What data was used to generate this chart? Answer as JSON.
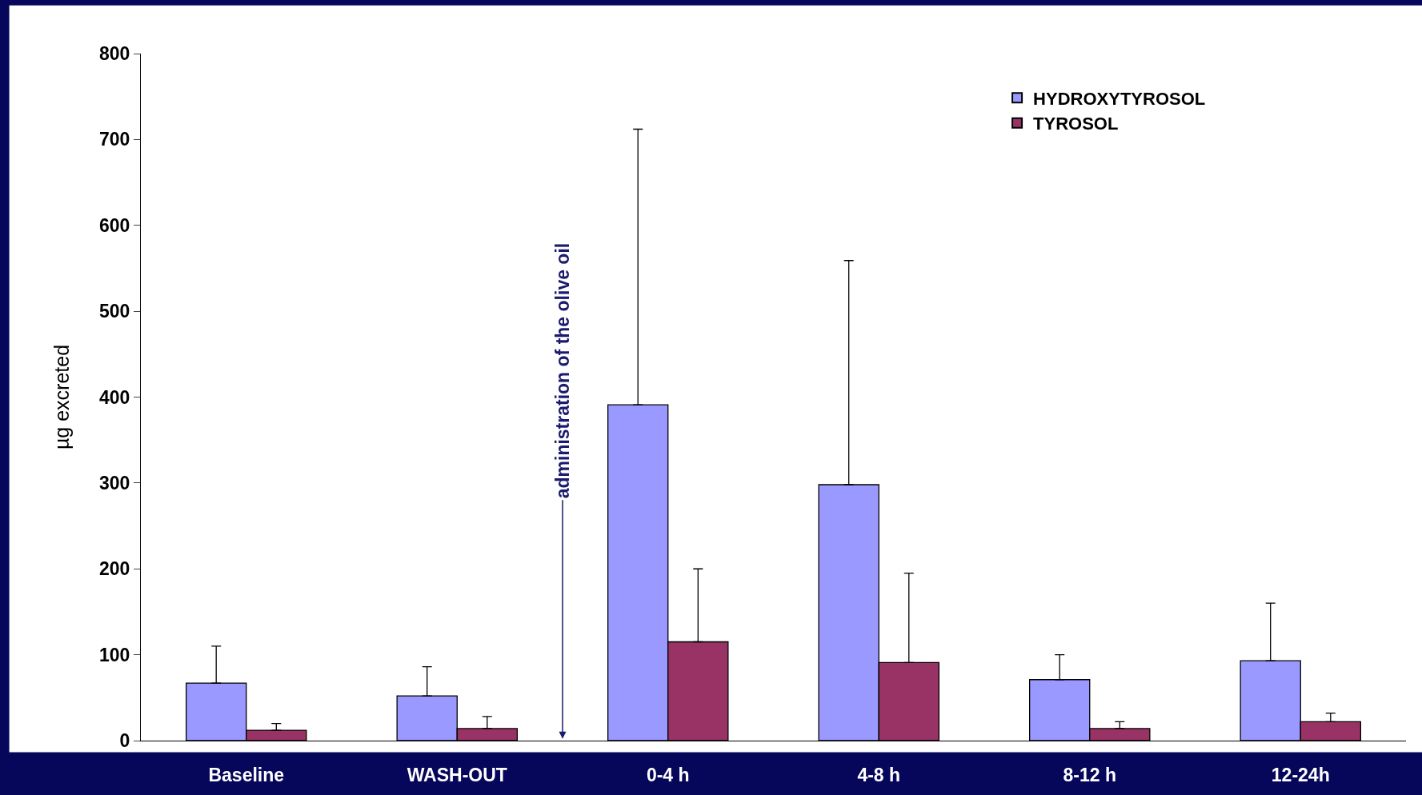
{
  "chart_data": {
    "type": "bar",
    "ylabel": "µg excreted",
    "categories": [
      "Baseline",
      "WASH-OUT",
      "0-4 h",
      "4-8 h",
      "8-12 h",
      "12-24h"
    ],
    "series": [
      {
        "name": "HYDROXYTYROSOL",
        "color": "#9999ff",
        "values": [
          67,
          52,
          391,
          298,
          71,
          93
        ],
        "errors": [
          [
            67,
            110
          ],
          [
            52,
            86
          ],
          [
            391,
            712
          ],
          [
            298,
            559
          ],
          [
            71,
            100
          ],
          [
            93,
            160
          ]
        ]
      },
      {
        "name": "TYROSOL",
        "color": "#993366",
        "values": [
          12,
          14,
          115,
          91,
          14,
          22
        ],
        "errors": [
          [
            12,
            20
          ],
          [
            14,
            28
          ],
          [
            115,
            200
          ],
          [
            91,
            195
          ],
          [
            14,
            22
          ],
          [
            22,
            32
          ]
        ]
      }
    ],
    "ylim": [
      0,
      800
    ],
    "yticks": [
      0,
      100,
      200,
      300,
      400,
      500,
      600,
      700,
      800
    ],
    "annotations": [
      "administration of the olive oil"
    ],
    "legend": "top right"
  }
}
